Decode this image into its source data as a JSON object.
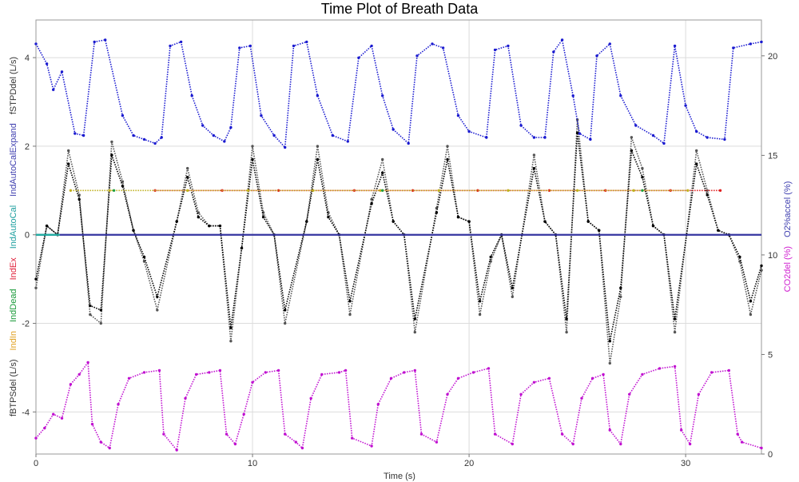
{
  "chart_data": {
    "type": "scatter",
    "title": "Time Plot of Breath Data",
    "xlabel": "Time (s)",
    "xlim": [
      0,
      33.5
    ],
    "x_ticks": [
      "0",
      "10",
      "20",
      "30"
    ],
    "left_axis": {
      "ylim": [
        -4.95,
        4.85
      ],
      "ticks": [
        "4",
        "2",
        "0",
        "-2",
        "-4"
      ],
      "labels": [
        {
          "text": "fBTPSdel (L/s)",
          "color": "#333333"
        },
        {
          "text": "IndIn",
          "color": "#e0a020"
        },
        {
          "text": "IndDead",
          "color": "#1a9a3a"
        },
        {
          "text": "IndEx",
          "color": "#e0203a"
        },
        {
          "text": "IndAutoCal",
          "color": "#20a0a0"
        },
        {
          "text": "IndAutoCalExpand",
          "color": "#4040b0"
        },
        {
          "text": "fSTPDdel (L/s)",
          "color": "#333333"
        }
      ]
    },
    "right_axis": {
      "ylim": [
        0,
        21.8
      ],
      "ticks": [
        "20",
        "15",
        "10",
        "5",
        "0"
      ],
      "labels": [
        {
          "text": "CO2del (%)",
          "color": "#d020d0"
        },
        {
          "text": "O2%accel (%)",
          "color": "#4040b0"
        }
      ]
    },
    "series": [
      {
        "name": "fBTPSdel (L/s)",
        "axis": "left",
        "color": "#555555",
        "points": [
          [
            0,
            -1.2
          ],
          [
            0.5,
            0.2
          ],
          [
            1.0,
            0.0
          ],
          [
            1.5,
            1.9
          ],
          [
            2.0,
            0.9
          ],
          [
            2.5,
            -1.8
          ],
          [
            3.0,
            -2.0
          ],
          [
            3.5,
            2.1
          ],
          [
            4.0,
            1.2
          ],
          [
            4.5,
            0.1
          ],
          [
            5.0,
            -0.6
          ],
          [
            5.6,
            -1.7
          ],
          [
            6.5,
            0.3
          ],
          [
            7.0,
            1.5
          ],
          [
            7.5,
            0.5
          ],
          [
            8.0,
            0.2
          ],
          [
            8.5,
            0.2
          ],
          [
            9.0,
            -2.4
          ],
          [
            9.5,
            -0.3
          ],
          [
            10.0,
            2.0
          ],
          [
            10.5,
            0.5
          ],
          [
            11.0,
            0.0
          ],
          [
            11.5,
            -2.0
          ],
          [
            12.5,
            0.3
          ],
          [
            13.0,
            2.0
          ],
          [
            13.5,
            0.5
          ],
          [
            14.0,
            0.0
          ],
          [
            14.5,
            -1.8
          ],
          [
            15.5,
            0.8
          ],
          [
            16.0,
            1.7
          ],
          [
            16.5,
            0.3
          ],
          [
            17.0,
            0.0
          ],
          [
            17.5,
            -2.2
          ],
          [
            18.5,
            0.6
          ],
          [
            19.0,
            2.0
          ],
          [
            19.5,
            0.4
          ],
          [
            20.0,
            0.3
          ],
          [
            20.5,
            -1.8
          ],
          [
            21.0,
            -0.6
          ],
          [
            21.5,
            0.0
          ],
          [
            22.0,
            -1.4
          ],
          [
            23.0,
            1.8
          ],
          [
            23.5,
            0.3
          ],
          [
            24.0,
            0.0
          ],
          [
            24.5,
            -2.2
          ],
          [
            25.0,
            2.6
          ],
          [
            25.5,
            0.3
          ],
          [
            26.0,
            0.1
          ],
          [
            26.5,
            -2.9
          ],
          [
            27.0,
            -1.4
          ],
          [
            27.5,
            2.2
          ],
          [
            28.0,
            1.5
          ],
          [
            28.5,
            0.2
          ],
          [
            29.0,
            0.0
          ],
          [
            29.5,
            -2.2
          ],
          [
            30.5,
            1.9
          ],
          [
            31.0,
            1.0
          ],
          [
            31.5,
            0.1
          ],
          [
            32.0,
            0.0
          ],
          [
            32.5,
            -0.6
          ],
          [
            33.0,
            -1.8
          ],
          [
            33.5,
            -0.8
          ]
        ]
      },
      {
        "name": "fSTPDdel (L/s)",
        "axis": "left",
        "color": "#000000",
        "points": [
          [
            0,
            -1.0
          ],
          [
            0.5,
            0.2
          ],
          [
            1.0,
            0.0
          ],
          [
            1.5,
            1.6
          ],
          [
            2.0,
            0.8
          ],
          [
            2.5,
            -1.6
          ],
          [
            3.0,
            -1.7
          ],
          [
            3.5,
            1.8
          ],
          [
            4.0,
            1.1
          ],
          [
            4.5,
            0.1
          ],
          [
            5.0,
            -0.5
          ],
          [
            5.6,
            -1.4
          ],
          [
            6.5,
            0.3
          ],
          [
            7.0,
            1.3
          ],
          [
            7.5,
            0.4
          ],
          [
            8.0,
            0.2
          ],
          [
            8.5,
            0.2
          ],
          [
            9.0,
            -2.1
          ],
          [
            9.5,
            -0.3
          ],
          [
            10.0,
            1.7
          ],
          [
            10.5,
            0.4
          ],
          [
            11.0,
            0.0
          ],
          [
            11.5,
            -1.7
          ],
          [
            12.5,
            0.3
          ],
          [
            13.0,
            1.7
          ],
          [
            13.5,
            0.4
          ],
          [
            14.0,
            0.0
          ],
          [
            14.5,
            -1.5
          ],
          [
            15.5,
            0.7
          ],
          [
            16.0,
            1.4
          ],
          [
            16.5,
            0.3
          ],
          [
            17.0,
            0.0
          ],
          [
            17.5,
            -1.9
          ],
          [
            18.5,
            0.5
          ],
          [
            19.0,
            1.7
          ],
          [
            19.5,
            0.4
          ],
          [
            20.0,
            0.3
          ],
          [
            20.5,
            -1.5
          ],
          [
            21.0,
            -0.5
          ],
          [
            21.5,
            0.0
          ],
          [
            22.0,
            -1.2
          ],
          [
            23.0,
            1.5
          ],
          [
            23.5,
            0.3
          ],
          [
            24.0,
            0.0
          ],
          [
            24.5,
            -1.9
          ],
          [
            25.0,
            2.3
          ],
          [
            25.5,
            0.3
          ],
          [
            26.0,
            0.1
          ],
          [
            26.5,
            -2.4
          ],
          [
            27.0,
            -1.2
          ],
          [
            27.5,
            1.9
          ],
          [
            28.0,
            1.3
          ],
          [
            28.5,
            0.2
          ],
          [
            29.0,
            0.0
          ],
          [
            29.5,
            -1.9
          ],
          [
            30.5,
            1.6
          ],
          [
            31.0,
            0.9
          ],
          [
            31.5,
            0.1
          ],
          [
            32.0,
            0.0
          ],
          [
            32.5,
            -0.5
          ],
          [
            33.0,
            -1.5
          ],
          [
            33.5,
            -0.7
          ]
        ]
      },
      {
        "name": "O2%accel (%)",
        "axis": "right",
        "color": "#1a1ad0",
        "points": [
          [
            0,
            20.6
          ],
          [
            0.5,
            19.6
          ],
          [
            0.8,
            18.3
          ],
          [
            1.2,
            19.2
          ],
          [
            1.8,
            16.1
          ],
          [
            2.2,
            16.0
          ],
          [
            2.7,
            20.7
          ],
          [
            3.2,
            20.8
          ],
          [
            4.0,
            17.0
          ],
          [
            4.5,
            16.0
          ],
          [
            5.0,
            15.8
          ],
          [
            5.5,
            15.6
          ],
          [
            5.8,
            15.9
          ],
          [
            6.2,
            20.5
          ],
          [
            6.7,
            20.7
          ],
          [
            7.2,
            18.0
          ],
          [
            7.7,
            16.5
          ],
          [
            8.2,
            16.0
          ],
          [
            8.7,
            15.7
          ],
          [
            9.0,
            16.4
          ],
          [
            9.4,
            20.4
          ],
          [
            9.9,
            20.5
          ],
          [
            10.4,
            17.0
          ],
          [
            11.0,
            16.0
          ],
          [
            11.5,
            15.4
          ],
          [
            11.9,
            20.5
          ],
          [
            12.5,
            20.7
          ],
          [
            13.0,
            18.0
          ],
          [
            13.7,
            16.0
          ],
          [
            14.4,
            15.7
          ],
          [
            14.9,
            19.9
          ],
          [
            15.5,
            20.5
          ],
          [
            16.0,
            18.0
          ],
          [
            16.5,
            16.3
          ],
          [
            17.2,
            15.6
          ],
          [
            17.6,
            20.0
          ],
          [
            18.3,
            20.6
          ],
          [
            18.8,
            20.4
          ],
          [
            19.5,
            17.0
          ],
          [
            20.0,
            16.2
          ],
          [
            20.8,
            15.9
          ],
          [
            21.2,
            20.3
          ],
          [
            21.8,
            20.5
          ],
          [
            22.4,
            16.5
          ],
          [
            23.0,
            15.9
          ],
          [
            23.5,
            15.9
          ],
          [
            23.9,
            20.2
          ],
          [
            24.3,
            20.8
          ],
          [
            24.8,
            18.0
          ],
          [
            25.1,
            16.1
          ],
          [
            25.6,
            15.8
          ],
          [
            25.9,
            20.0
          ],
          [
            26.5,
            20.6
          ],
          [
            27.0,
            18.0
          ],
          [
            27.7,
            16.5
          ],
          [
            28.5,
            16.0
          ],
          [
            29.0,
            15.6
          ],
          [
            29.5,
            20.5
          ],
          [
            30.0,
            17.5
          ],
          [
            30.5,
            16.2
          ],
          [
            31.0,
            15.9
          ],
          [
            31.8,
            15.8
          ],
          [
            32.2,
            20.4
          ],
          [
            33.0,
            20.6
          ],
          [
            33.5,
            20.7
          ]
        ]
      },
      {
        "name": "CO2del (%)",
        "axis": "right",
        "color": "#c010d0",
        "points": [
          [
            0,
            0.8
          ],
          [
            0.4,
            1.3
          ],
          [
            0.8,
            2.0
          ],
          [
            1.2,
            1.8
          ],
          [
            1.6,
            3.5
          ],
          [
            2.0,
            4.0
          ],
          [
            2.4,
            4.6
          ],
          [
            2.6,
            1.5
          ],
          [
            3.0,
            0.6
          ],
          [
            3.4,
            0.3
          ],
          [
            3.8,
            2.5
          ],
          [
            4.3,
            3.8
          ],
          [
            5.0,
            4.1
          ],
          [
            5.7,
            4.2
          ],
          [
            5.9,
            1.0
          ],
          [
            6.5,
            0.2
          ],
          [
            6.9,
            2.8
          ],
          [
            7.4,
            4.0
          ],
          [
            8.0,
            4.1
          ],
          [
            8.5,
            4.2
          ],
          [
            8.8,
            1.0
          ],
          [
            9.2,
            0.5
          ],
          [
            9.6,
            2.0
          ],
          [
            10.0,
            3.6
          ],
          [
            10.6,
            4.1
          ],
          [
            11.2,
            4.2
          ],
          [
            11.5,
            1.0
          ],
          [
            12.0,
            0.6
          ],
          [
            12.3,
            0.3
          ],
          [
            12.7,
            2.8
          ],
          [
            13.2,
            4.0
          ],
          [
            14.0,
            4.1
          ],
          [
            14.3,
            4.2
          ],
          [
            14.6,
            0.8
          ],
          [
            15.5,
            0.4
          ],
          [
            15.8,
            2.5
          ],
          [
            16.4,
            3.8
          ],
          [
            17.0,
            4.1
          ],
          [
            17.5,
            4.2
          ],
          [
            17.8,
            1.0
          ],
          [
            18.5,
            0.6
          ],
          [
            19.0,
            3.0
          ],
          [
            19.5,
            3.8
          ],
          [
            20.2,
            4.1
          ],
          [
            20.9,
            4.3
          ],
          [
            21.2,
            1.0
          ],
          [
            22.0,
            0.5
          ],
          [
            22.4,
            3.0
          ],
          [
            23.0,
            3.6
          ],
          [
            23.7,
            3.8
          ],
          [
            24.3,
            1.0
          ],
          [
            24.8,
            0.5
          ],
          [
            25.2,
            2.8
          ],
          [
            25.7,
            3.8
          ],
          [
            26.2,
            4.0
          ],
          [
            26.5,
            1.2
          ],
          [
            27.0,
            0.5
          ],
          [
            27.4,
            3.0
          ],
          [
            28.0,
            4.0
          ],
          [
            28.8,
            4.3
          ],
          [
            29.5,
            4.4
          ],
          [
            29.8,
            1.2
          ],
          [
            30.2,
            0.5
          ],
          [
            30.6,
            3.0
          ],
          [
            31.2,
            4.1
          ],
          [
            32.0,
            4.2
          ],
          [
            32.4,
            1.0
          ],
          [
            32.6,
            0.6
          ],
          [
            33.5,
            0.3
          ]
        ]
      },
      {
        "name": "IndAutoCalExpand",
        "axis": "left",
        "color": "#3535a0",
        "points": [
          [
            0,
            0.0
          ],
          [
            33.5,
            0.0
          ]
        ]
      },
      {
        "name": "IndAutoCal",
        "axis": "left",
        "color": "#20b0a0",
        "points": [
          [
            0,
            0.0
          ],
          [
            1.1,
            0.0
          ]
        ]
      },
      {
        "name": "IndEx",
        "axis": "left",
        "color": "#e02020",
        "points": [
          [
            5.5,
            1.0
          ],
          [
            8.6,
            1.0
          ],
          [
            11.2,
            1.0
          ],
          [
            14.7,
            1.0
          ],
          [
            17.4,
            1.0
          ],
          [
            20.4,
            1.0
          ],
          [
            23.7,
            1.0
          ],
          [
            26.3,
            1.0
          ],
          [
            29.3,
            1.0
          ],
          [
            31.6,
            1.0
          ]
        ]
      },
      {
        "name": "IndIn",
        "axis": "left",
        "color": "#c0b020",
        "points": [
          [
            1.6,
            1.0
          ],
          [
            3.4,
            1.0
          ],
          [
            7.0,
            1.0
          ],
          [
            9.8,
            1.0
          ],
          [
            12.8,
            1.0
          ],
          [
            15.9,
            1.0
          ],
          [
            18.6,
            1.0
          ],
          [
            21.8,
            1.0
          ],
          [
            25.0,
            1.0
          ],
          [
            27.6,
            1.0
          ],
          [
            30.1,
            1.0
          ]
        ]
      },
      {
        "name": "IndDead",
        "axis": "left",
        "color": "#20a040",
        "points": [
          [
            3.6,
            1.0
          ],
          [
            16.0,
            1.0
          ],
          [
            28.0,
            1.0
          ]
        ]
      }
    ]
  }
}
